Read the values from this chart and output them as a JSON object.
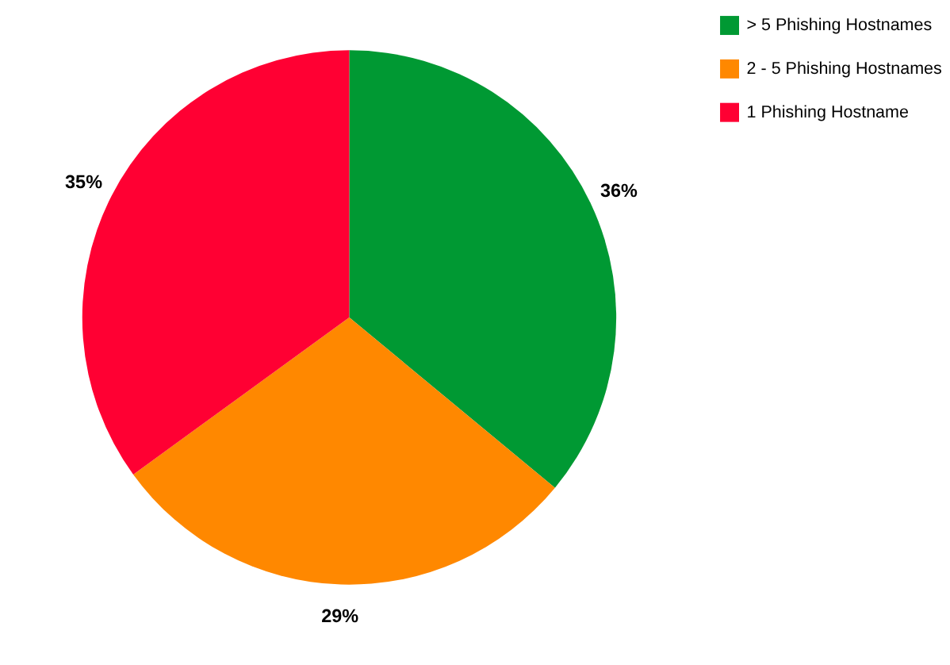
{
  "chart_data": {
    "type": "pie",
    "categories": [
      "> 5 Phishing Hostnames",
      "2 - 5 Phishing Hostnames",
      "1 Phishing Hostname"
    ],
    "values": [
      36,
      29,
      35
    ],
    "colors": [
      "#009933",
      "#ff8800",
      "#ff0033"
    ],
    "value_labels": [
      "36%",
      "29%",
      "35%"
    ],
    "legend": "right"
  }
}
